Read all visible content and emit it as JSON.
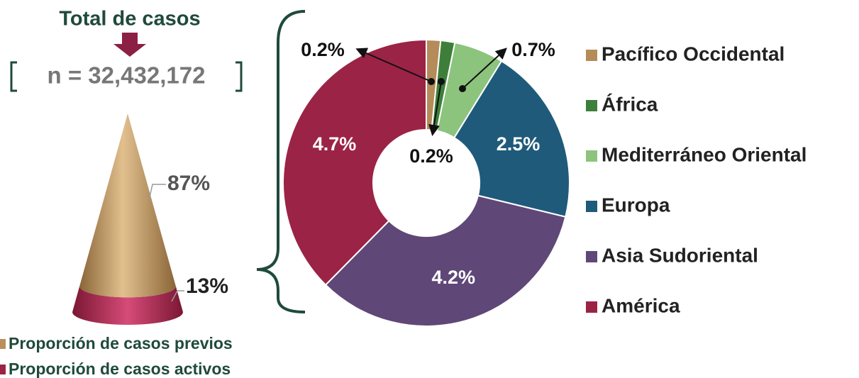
{
  "chart_data": [
    {
      "type": "cone",
      "title": "Total de casos",
      "subtitle": "n = 32,432,172",
      "categories": [
        "Proporción de casos previos",
        "Proporción de casos activos"
      ],
      "values": [
        87,
        13
      ],
      "value_labels": [
        "87%",
        "13%"
      ],
      "colors": [
        "#b98f5c",
        "#9b2346"
      ]
    },
    {
      "type": "donut",
      "categories": [
        "Pacífico Occidental",
        "África",
        "Mediterráneo Oriental",
        "Europa",
        "Asia Sudoriental",
        "América"
      ],
      "values": [
        0.2,
        0.2,
        0.7,
        2.5,
        4.2,
        4.7
      ],
      "value_labels": [
        "0.2%",
        "0.2%",
        "0.7%",
        "2.5%",
        "4.2%",
        "4.7%"
      ],
      "colors": [
        "#b58b5a",
        "#3d7f3a",
        "#8cc47e",
        "#1f5a7a",
        "#5f4777",
        "#9b2346"
      ]
    }
  ]
}
